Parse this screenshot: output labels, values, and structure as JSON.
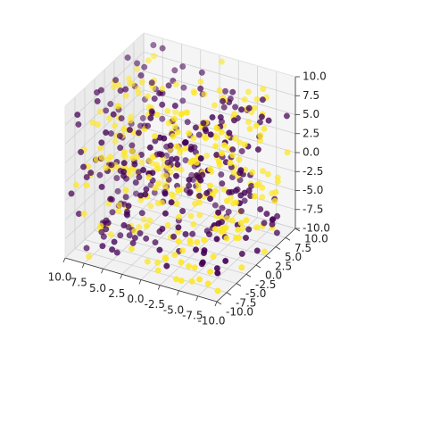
{
  "chart_data": {
    "type": "scatter",
    "projection": "3d",
    "title": "",
    "xlabel": "",
    "ylabel": "",
    "zlabel": "",
    "xlim": [
      -10,
      10
    ],
    "ylim": [
      -10,
      10
    ],
    "zlim": [
      -10,
      10
    ],
    "xticks": [
      "-10.0",
      "-7.5",
      "-5.0",
      "-2.5",
      "0.0",
      "2.5",
      "5.0",
      "7.5",
      "10.0"
    ],
    "yticks": [
      "-10.0",
      "-7.5",
      "-5.0",
      "-2.5",
      "0.0",
      "2.5",
      "5.0",
      "7.5",
      "10.0"
    ],
    "zticks": [
      "-10.0",
      "-7.5",
      "-5.0",
      "-2.5",
      "0.0",
      "2.5",
      "5.0",
      "7.5",
      "10.0"
    ],
    "grid": true,
    "legend": false,
    "class_colors": [
      "#440154",
      "#fde725"
    ],
    "point_count_per_class": 300,
    "points": [
      {
        "x": -6.5,
        "y": 1.2,
        "z": 7.5,
        "c": 0
      },
      {
        "x": 4.8,
        "y": -3.0,
        "z": 2.2,
        "c": 1
      },
      {
        "x": -1.2,
        "y": 8.1,
        "z": -4.5,
        "c": 0
      },
      {
        "x": 7.3,
        "y": 6.0,
        "z": 9.1,
        "c": 1
      },
      {
        "x": -9.1,
        "y": -7.8,
        "z": -1.0,
        "c": 0
      },
      {
        "x": 2.6,
        "y": -9.2,
        "z": 5.7,
        "c": 1
      },
      {
        "x": 0.4,
        "y": 3.5,
        "z": -8.2,
        "c": 1
      },
      {
        "x": -3.8,
        "y": -1.7,
        "z": 0.9,
        "c": 0
      },
      {
        "x": 9.0,
        "y": 9.4,
        "z": -6.3,
        "c": 0
      },
      {
        "x": -7.7,
        "y": 5.5,
        "z": 3.1,
        "c": 1
      },
      {
        "x": 5.9,
        "y": 0.8,
        "z": -2.7,
        "c": 0
      },
      {
        "x": -4.4,
        "y": -6.3,
        "z": 8.8,
        "c": 1
      }
    ]
  }
}
